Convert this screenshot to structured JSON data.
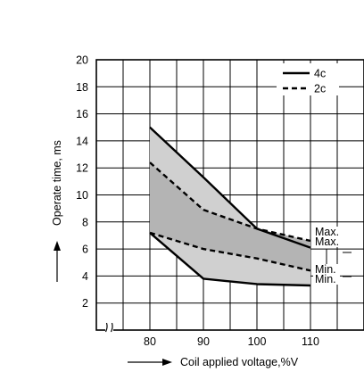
{
  "chart_data": {
    "type": "line",
    "xlabel": "Coil applied voltage,%V",
    "ylabel": "Operate time, ms",
    "x_ticks": [
      "80",
      "90",
      "100",
      "110"
    ],
    "y_ticks": [
      "2",
      "4",
      "6",
      "8",
      "10",
      "12",
      "14",
      "16",
      "18",
      "20"
    ],
    "xlim": [
      70,
      120
    ],
    "ylim": [
      0,
      20
    ],
    "grid": true,
    "legend_position": "top-right",
    "series": [
      {
        "name": "4c",
        "style": "solid",
        "bound": "Max.",
        "x": [
          80,
          90,
          100,
          110
        ],
        "y": [
          15.0,
          11.3,
          7.5,
          6.1
        ]
      },
      {
        "name": "4c",
        "style": "solid",
        "bound": "Min.",
        "x": [
          80,
          90,
          100,
          110
        ],
        "y": [
          7.2,
          3.8,
          3.4,
          3.3
        ]
      },
      {
        "name": "2c",
        "style": "dashed",
        "bound": "Max.",
        "x": [
          80,
          90,
          100,
          110
        ],
        "y": [
          12.4,
          8.9,
          7.5,
          6.6
        ]
      },
      {
        "name": "2c",
        "style": "dashed",
        "bound": "Min.",
        "x": [
          80,
          90,
          100,
          110
        ],
        "y": [
          7.2,
          6.0,
          5.3,
          4.4
        ]
      }
    ],
    "legend": [
      {
        "label": "4c",
        "style": "solid"
      },
      {
        "label": "2c",
        "style": "dashed"
      }
    ],
    "annotations": [
      "Max.",
      "Max.",
      "Min.",
      "Min."
    ],
    "colors": {
      "band_outer": "#d0d0d0",
      "band_inner": "#b4b4b4",
      "line": "#000000",
      "grid": "#000000"
    }
  }
}
